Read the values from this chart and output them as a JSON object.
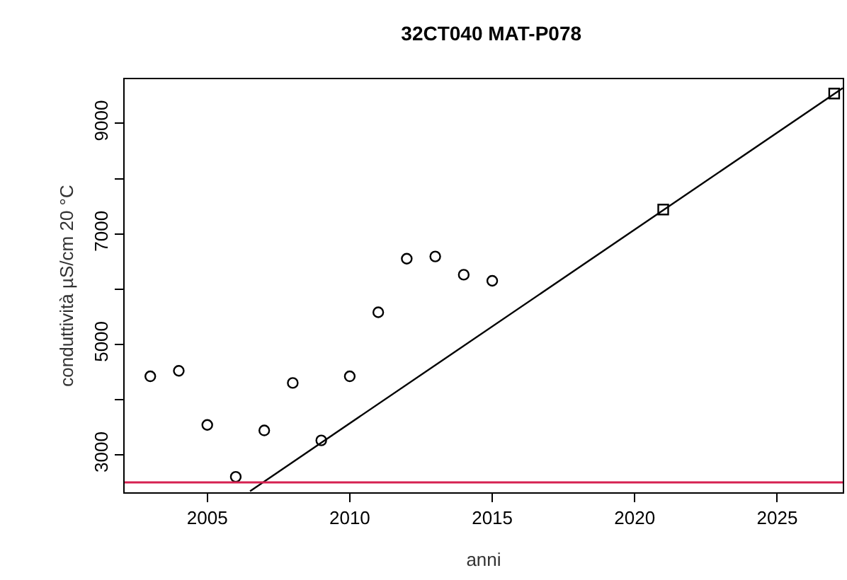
{
  "chart_data": {
    "type": "scatter",
    "title": "32CT040 MAT-P078",
    "xlabel": "anni",
    "ylabel": "conduttività µS/cm 20 °C",
    "xlim": [
      2002.1,
      2027.3
    ],
    "xticks": [
      2005,
      2010,
      2015,
      2020,
      2025
    ],
    "ylim": [
      2320,
      9800
    ],
    "yticks": [
      3000,
      {
        "value": 4000,
        "label": null
      },
      5000,
      {
        "value": 6000,
        "label": null
      },
      7000,
      {
        "value": 8000,
        "label": null
      },
      9000
    ],
    "series": [
      {
        "marker": "circle",
        "color": "#000000",
        "x": [
          2003,
          2004,
          2005,
          2006,
          2007,
          2008,
          2009,
          2010,
          2011,
          2012,
          2013,
          2014,
          2015
        ],
        "values": [
          4420,
          4520,
          3540,
          2600,
          3440,
          4300,
          3260,
          4420,
          5580,
          6550,
          6590,
          6260,
          6150
        ]
      },
      {
        "marker": "square",
        "color": "#000000",
        "x": [
          2021,
          2027
        ],
        "values": [
          7440,
          9540
        ]
      },
      {
        "type": "line",
        "marker": "none",
        "line_style": "solid",
        "color": "#000000",
        "x": [
          2006.5,
          2027.3
        ],
        "values": [
          2340,
          9640
        ]
      }
    ],
    "ref_lines": [
      {
        "axis": "y",
        "value": 2500,
        "color": "#d62050",
        "line_style": "solid"
      }
    ]
  }
}
